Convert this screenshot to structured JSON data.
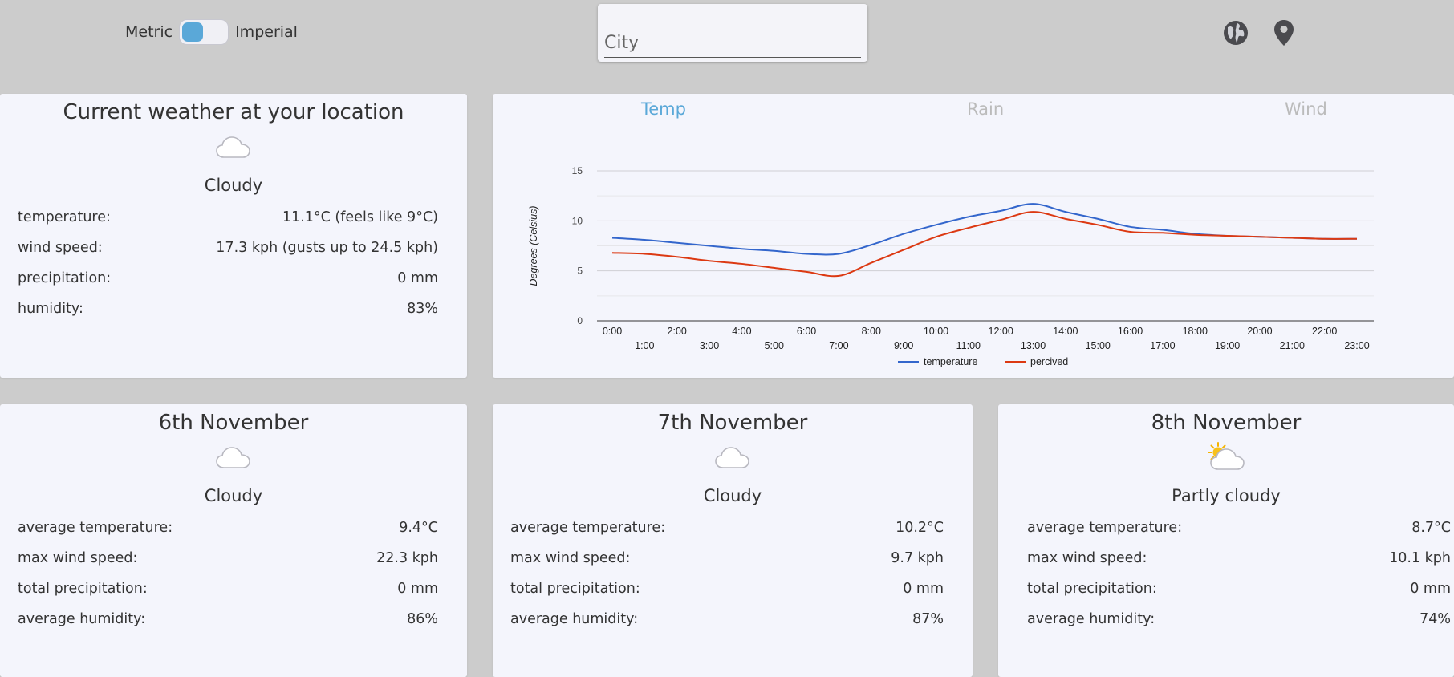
{
  "units": {
    "metric_label": "Metric",
    "imperial_label": "Imperial",
    "selected": "metric"
  },
  "search": {
    "placeholder": "City",
    "value": ""
  },
  "header_icons": [
    "globe-icon",
    "map-pin-icon"
  ],
  "colors": {
    "accent": "#5aa8d8",
    "tab_inactive": "#bbbbbb",
    "temperature_line": "#3366cc",
    "perceived_line": "#dc3912"
  },
  "current": {
    "title": "Current weather at your location",
    "icon": "cloud-icon",
    "condition": "Cloudy",
    "rows": [
      {
        "label": "temperature:",
        "value": "11.1°C (feels like 9°C)"
      },
      {
        "label": "wind speed:",
        "value": "17.3 kph (gusts up to 24.5 kph)"
      },
      {
        "label": "precipitation:",
        "value": "0 mm"
      },
      {
        "label": "humidity:",
        "value": "83%"
      }
    ]
  },
  "tabs": [
    {
      "label": "Temp",
      "active": true
    },
    {
      "label": "Rain",
      "active": false
    },
    {
      "label": "Wind",
      "active": false
    }
  ],
  "chart_data": {
    "type": "line",
    "ylabel": "Degrees (Celsius)",
    "xlabel": "",
    "ylim": [
      0,
      15
    ],
    "yticks": [
      0,
      5,
      10,
      15
    ],
    "grid": true,
    "legend_position": "bottom",
    "x": [
      "0:00",
      "1:00",
      "2:00",
      "3:00",
      "4:00",
      "5:00",
      "6:00",
      "7:00",
      "8:00",
      "9:00",
      "10:00",
      "11:00",
      "12:00",
      "13:00",
      "14:00",
      "15:00",
      "16:00",
      "17:00",
      "18:00",
      "19:00",
      "20:00",
      "21:00",
      "22:00",
      "23:00"
    ],
    "series": [
      {
        "name": "temperature",
        "color": "#3366cc",
        "values": [
          8.3,
          8.1,
          7.8,
          7.5,
          7.2,
          7.0,
          6.7,
          6.7,
          7.6,
          8.7,
          9.6,
          10.4,
          11.0,
          11.7,
          10.9,
          10.2,
          9.4,
          9.1,
          8.7,
          8.5,
          8.4,
          8.3,
          8.2,
          8.2
        ]
      },
      {
        "name": "percived",
        "color": "#dc3912",
        "values": [
          6.8,
          6.7,
          6.4,
          6.0,
          5.7,
          5.3,
          4.9,
          4.5,
          5.8,
          7.1,
          8.4,
          9.3,
          10.1,
          10.9,
          10.2,
          9.6,
          8.9,
          8.8,
          8.6,
          8.5,
          8.4,
          8.3,
          8.2,
          8.2
        ]
      }
    ]
  },
  "forecast": [
    {
      "title": "6th November",
      "icon": "cloud-icon",
      "condition": "Cloudy",
      "rows": [
        {
          "label": "average temperature:",
          "value": "9.4°C"
        },
        {
          "label": "max wind speed:",
          "value": "22.3 kph"
        },
        {
          "label": "total precipitation:",
          "value": "0 mm"
        },
        {
          "label": "average humidity:",
          "value": "86%"
        }
      ]
    },
    {
      "title": "7th November",
      "icon": "cloud-icon",
      "condition": "Cloudy",
      "rows": [
        {
          "label": "average temperature:",
          "value": "10.2°C"
        },
        {
          "label": "max wind speed:",
          "value": "9.7 kph"
        },
        {
          "label": "total precipitation:",
          "value": "0 mm"
        },
        {
          "label": "average humidity:",
          "value": "87%"
        }
      ]
    },
    {
      "title": "8th November",
      "icon": "partly-cloudy-icon",
      "condition": "Partly cloudy",
      "rows": [
        {
          "label": "average temperature:",
          "value": "8.7°C"
        },
        {
          "label": "max wind speed:",
          "value": "10.1 kph"
        },
        {
          "label": "total precipitation:",
          "value": "0 mm"
        },
        {
          "label": "average humidity:",
          "value": "74%"
        }
      ]
    }
  ]
}
